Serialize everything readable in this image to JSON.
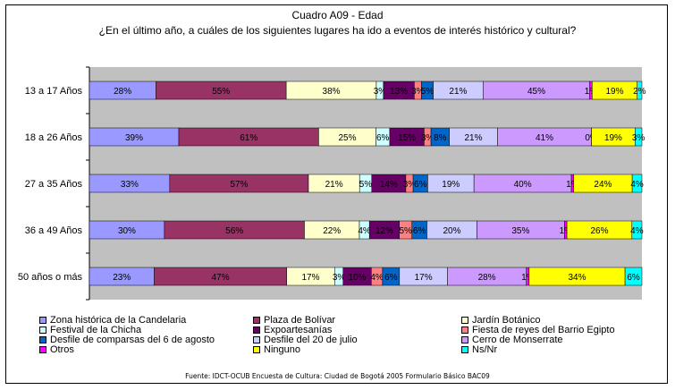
{
  "chart_data": {
    "type": "bar",
    "orientation": "horizontal",
    "stacked": "percent",
    "title": "Cuadro A09 - Edad",
    "subtitle": "¿En el último año, a cuáles de los siguientes lugares ha ido a eventos de interés histórico y cultural?",
    "categories": [
      "13 a 17 Años",
      "18 a 26 Años",
      "27 a 35 Años",
      "36 a 49 Años",
      "50 años o más"
    ],
    "series": [
      {
        "name": "Zona histórica de la Candelaria",
        "color": "#9999ff",
        "values": [
          28,
          39,
          33,
          30,
          23
        ]
      },
      {
        "name": "Plaza de Bolívar",
        "color": "#993366",
        "values": [
          55,
          61,
          57,
          56,
          47
        ]
      },
      {
        "name": "Jardín Botánico",
        "color": "#ffffcc",
        "values": [
          38,
          25,
          21,
          22,
          17
        ]
      },
      {
        "name": "Festival de la Chicha",
        "color": "#ccffff",
        "values": [
          3,
          6,
          5,
          4,
          3
        ]
      },
      {
        "name": "Expoartesanías",
        "color": "#660066",
        "values": [
          13,
          15,
          14,
          12,
          10
        ]
      },
      {
        "name": "Fiesta de reyes del Barrio Egipto",
        "color": "#ff8080",
        "values": [
          3,
          3,
          3,
          5,
          4
        ]
      },
      {
        "name": "Desfile de comparsas del 6 de agosto",
        "color": "#0066cc",
        "values": [
          5,
          8,
          6,
          6,
          6
        ]
      },
      {
        "name": "Desfile del 20 de julio",
        "color": "#ccccff",
        "values": [
          21,
          21,
          19,
          20,
          17
        ]
      },
      {
        "name": "Cerro de Monserrate",
        "color": "#cc99ff",
        "values": [
          45,
          41,
          40,
          35,
          28
        ]
      },
      {
        "name": "Otros",
        "color": "#ff00ff",
        "values": [
          1,
          0,
          1,
          1,
          1
        ]
      },
      {
        "name": "Ninguno",
        "color": "#ffff00",
        "values": [
          19,
          19,
          24,
          26,
          34
        ]
      },
      {
        "name": "Ns/Nr",
        "color": "#00ffff",
        "values": [
          2,
          3,
          4,
          4,
          6
        ]
      }
    ],
    "data_labels": [
      [
        "28%",
        "55%",
        "38%",
        "3%",
        "13%",
        "3%",
        "5%",
        "21%",
        "45%",
        "1%",
        "19%",
        "2%"
      ],
      [
        "39%",
        "61%",
        "25%",
        "6%",
        "15%",
        "3%",
        "8%",
        "21%",
        "41%",
        "0%",
        "19%",
        "3%"
      ],
      [
        "33%",
        "57%",
        "21%",
        "5%",
        "14%",
        "3%",
        "6%",
        "19%",
        "40%",
        "1%",
        "24%",
        "4%"
      ],
      [
        "30%",
        "56%",
        "22%",
        "4%",
        "12%",
        "5%",
        "6%",
        "20%",
        "35%",
        "1%",
        "26%",
        "4%"
      ],
      [
        "23%",
        "47%",
        "17%",
        "3%",
        "10%",
        "4%",
        "6%",
        "17%",
        "28%",
        "1%",
        "34%",
        "6%"
      ]
    ],
    "grid": false,
    "legend_position": "bottom"
  },
  "source": "Fuente: IDCT-OCUB Encuesta de Cultura: Ciudad de Bogotá 2005 Formulario Básico BAC09"
}
